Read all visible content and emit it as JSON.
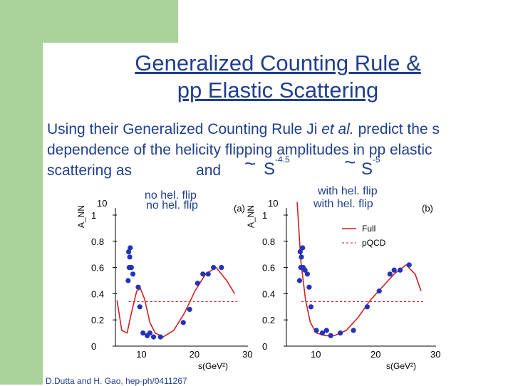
{
  "slide": {
    "title_line1": "Generalized Counting Rule &",
    "title_line2": "pp Elastic Scattering",
    "text_line1_pre": "Using their Generalized Counting Rule Ji ",
    "text_line1_italic": "et al.",
    "text_line1_post": " predict the s",
    "text_line2": "dependence of  the helicity flipping amplitudes in pp elastic",
    "text_line3_pre": "scattering as",
    "text_line3_and": "and",
    "formula1_base": "S",
    "formula1_exp": "-4.5",
    "formula2_base": "S",
    "formula2_exp": "-5",
    "tilde": "~",
    "left_panel_label_a": "no hel. flip",
    "left_panel_label_b": "no hel. flip",
    "right_panel_label_a": "with  hel. flip",
    "right_panel_label_b": "with  hel. flip",
    "citation": "D.Dutta and H. Gao, hep-ph/0411267",
    "colors": {
      "text": "#1f3f8f",
      "accent_green": "#a9d39a",
      "curve": "#cc2222",
      "points": "#2233bb"
    }
  },
  "chart_data": [
    {
      "type": "scatter",
      "panel": "(a)",
      "ylabel": "A_NN",
      "xlabel": "s(GeV²)",
      "xlim": [
        5,
        30
      ],
      "ylim": [
        0,
        1
      ],
      "x_ticks": [
        "10",
        "20",
        "30"
      ],
      "y_ticks": [
        "0",
        "0.2",
        "0.4",
        "0.6",
        "0.8",
        "1"
      ],
      "y_extra_label": "10",
      "points": [
        {
          "x": 7.5,
          "y": 0.72
        },
        {
          "x": 7.7,
          "y": 0.68
        },
        {
          "x": 7.8,
          "y": 0.75
        },
        {
          "x": 7.6,
          "y": 0.6
        },
        {
          "x": 7.9,
          "y": 0.6
        },
        {
          "x": 8.0,
          "y": 0.6
        },
        {
          "x": 8.3,
          "y": 0.55
        },
        {
          "x": 7.4,
          "y": 0.5
        },
        {
          "x": 9.3,
          "y": 0.45
        },
        {
          "x": 9.6,
          "y": 0.3
        },
        {
          "x": 10.2,
          "y": 0.1
        },
        {
          "x": 11.0,
          "y": 0.08
        },
        {
          "x": 11.5,
          "y": 0.1
        },
        {
          "x": 12.2,
          "y": 0.07
        },
        {
          "x": 13.5,
          "y": 0.07
        },
        {
          "x": 17.8,
          "y": 0.18
        },
        {
          "x": 19.0,
          "y": 0.28
        },
        {
          "x": 20.5,
          "y": 0.48
        },
        {
          "x": 21.5,
          "y": 0.55
        },
        {
          "x": 22.5,
          "y": 0.55
        },
        {
          "x": 23.5,
          "y": 0.6
        },
        {
          "x": 25.0,
          "y": 0.6
        }
      ],
      "curve": [
        {
          "x": 5.3,
          "y": 0.35
        },
        {
          "x": 6.2,
          "y": 0.12
        },
        {
          "x": 7.2,
          "y": 0.1
        },
        {
          "x": 8.0,
          "y": 0.25
        },
        {
          "x": 9.0,
          "y": 0.42
        },
        {
          "x": 9.7,
          "y": 0.44
        },
        {
          "x": 10.5,
          "y": 0.36
        },
        {
          "x": 11.5,
          "y": 0.18
        },
        {
          "x": 12.5,
          "y": 0.1
        },
        {
          "x": 14.0,
          "y": 0.07
        },
        {
          "x": 16.0,
          "y": 0.12
        },
        {
          "x": 18.0,
          "y": 0.25
        },
        {
          "x": 20.0,
          "y": 0.42
        },
        {
          "x": 22.0,
          "y": 0.55
        },
        {
          "x": 24.0,
          "y": 0.6
        },
        {
          "x": 26.0,
          "y": 0.5
        },
        {
          "x": 27.5,
          "y": 0.4
        }
      ],
      "dashed_y": 0.34
    },
    {
      "type": "scatter",
      "panel": "(b)",
      "ylabel": "A_NN",
      "xlabel": "s(GeV²)",
      "xlim": [
        5,
        30
      ],
      "ylim": [
        0,
        1
      ],
      "x_ticks": [
        "10",
        "20",
        "30"
      ],
      "y_ticks": [
        "0",
        "0.2",
        "0.4",
        "0.6",
        "0.8",
        "1"
      ],
      "y_extra_label": "10",
      "legend": [
        "Full",
        "pQCD"
      ],
      "points": [
        {
          "x": 7.3,
          "y": 0.72
        },
        {
          "x": 7.5,
          "y": 0.68
        },
        {
          "x": 7.7,
          "y": 0.75
        },
        {
          "x": 7.4,
          "y": 0.6
        },
        {
          "x": 7.8,
          "y": 0.6
        },
        {
          "x": 8.1,
          "y": 0.58
        },
        {
          "x": 8.5,
          "y": 0.55
        },
        {
          "x": 7.2,
          "y": 0.5
        },
        {
          "x": 8.8,
          "y": 0.45
        },
        {
          "x": 9.1,
          "y": 0.3
        },
        {
          "x": 10.0,
          "y": 0.12
        },
        {
          "x": 11.0,
          "y": 0.1
        },
        {
          "x": 11.7,
          "y": 0.12
        },
        {
          "x": 12.4,
          "y": 0.08
        },
        {
          "x": 14.0,
          "y": 0.1
        },
        {
          "x": 16.2,
          "y": 0.12
        },
        {
          "x": 18.5,
          "y": 0.3
        },
        {
          "x": 20.5,
          "y": 0.42
        },
        {
          "x": 22.3,
          "y": 0.55
        },
        {
          "x": 23.0,
          "y": 0.58
        },
        {
          "x": 24.0,
          "y": 0.58
        },
        {
          "x": 25.5,
          "y": 0.62
        }
      ],
      "curve": [
        {
          "x": 6.8,
          "y": 1.1
        },
        {
          "x": 7.4,
          "y": 0.65
        },
        {
          "x": 8.2,
          "y": 0.35
        },
        {
          "x": 9.0,
          "y": 0.18
        },
        {
          "x": 10.0,
          "y": 0.1
        },
        {
          "x": 11.5,
          "y": 0.08
        },
        {
          "x": 13.0,
          "y": 0.08
        },
        {
          "x": 15.0,
          "y": 0.12
        },
        {
          "x": 17.0,
          "y": 0.22
        },
        {
          "x": 19.0,
          "y": 0.35
        },
        {
          "x": 21.0,
          "y": 0.45
        },
        {
          "x": 23.0,
          "y": 0.55
        },
        {
          "x": 25.0,
          "y": 0.62
        },
        {
          "x": 26.5,
          "y": 0.55
        },
        {
          "x": 27.5,
          "y": 0.42
        }
      ],
      "dashed_y": 0.34
    }
  ]
}
